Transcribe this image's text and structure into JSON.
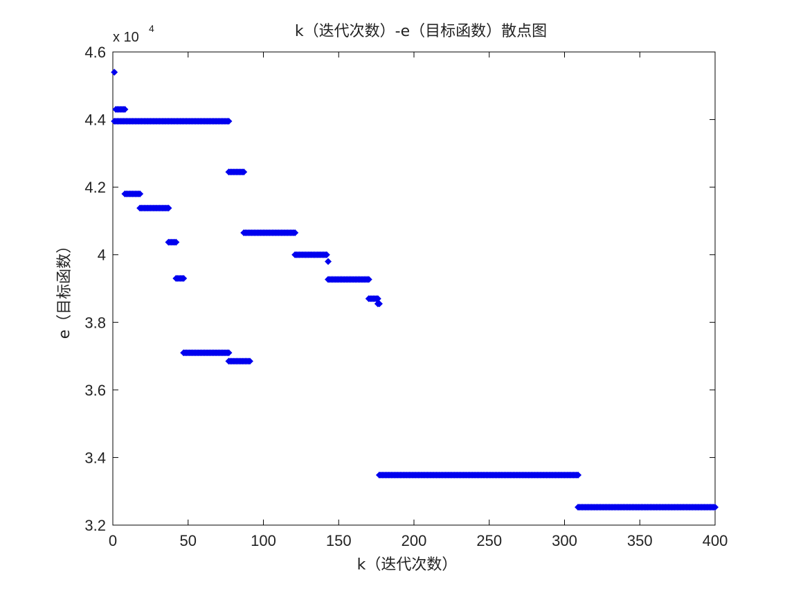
{
  "chart_data": {
    "type": "scatter",
    "title": "k（迭代次数）-e（目标函数）散点图",
    "xlabel": "k（迭代次数）",
    "ylabel": "e（目标函数）",
    "xlim": [
      0,
      400
    ],
    "ylim": [
      32000,
      46000
    ],
    "x_ticks": [
      "0",
      "50",
      "100",
      "150",
      "200",
      "250",
      "300",
      "350",
      "400"
    ],
    "y_ticks": [
      "3.2",
      "3.4",
      "3.6",
      "3.8",
      "4",
      "4.2",
      "4.4",
      "4.6"
    ],
    "y_multiplier": "x 10",
    "y_multiplier_exp": "4",
    "grid": false,
    "marker_color": "#0000ee",
    "segments": [
      {
        "x_start": 1,
        "x_end": 1,
        "y": 45400
      },
      {
        "x_start": 2,
        "x_end": 8,
        "y": 44300
      },
      {
        "x_start": 1,
        "x_end": 77,
        "y": 43950
      },
      {
        "x_start": 8,
        "x_end": 18,
        "y": 41800
      },
      {
        "x_start": 18,
        "x_end": 37,
        "y": 41380
      },
      {
        "x_start": 37,
        "x_end": 42,
        "y": 40370
      },
      {
        "x_start": 42,
        "x_end": 47,
        "y": 39300
      },
      {
        "x_start": 47,
        "x_end": 77,
        "y": 37100
      },
      {
        "x_start": 77,
        "x_end": 87,
        "y": 42450
      },
      {
        "x_start": 77,
        "x_end": 91,
        "y": 36850
      },
      {
        "x_start": 87,
        "x_end": 121,
        "y": 40650
      },
      {
        "x_start": 121,
        "x_end": 142,
        "y": 40000
      },
      {
        "x_start": 143,
        "x_end": 143,
        "y": 39800
      },
      {
        "x_start": 143,
        "x_end": 170,
        "y": 39270
      },
      {
        "x_start": 170,
        "x_end": 176,
        "y": 38700
      },
      {
        "x_start": 176,
        "x_end": 177,
        "y": 38550
      },
      {
        "x_start": 177,
        "x_end": 309,
        "y": 33480
      },
      {
        "x_start": 309,
        "x_end": 400,
        "y": 32530
      }
    ]
  }
}
